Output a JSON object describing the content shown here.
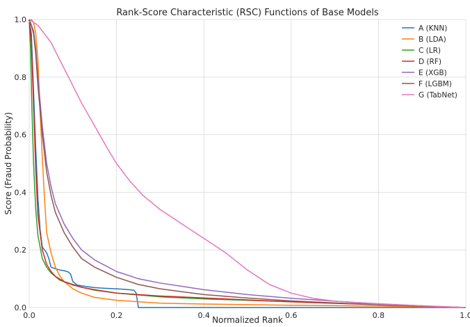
{
  "chart_data": {
    "type": "line",
    "title": "Rank-Score Characteristic (RSC) Functions of Base Models",
    "xlabel": "Normalized Rank",
    "ylabel": "Score (Fraud Probability)",
    "xlim": [
      0.0,
      1.0
    ],
    "ylim": [
      0.0,
      1.0
    ],
    "grid": true,
    "legend_position": "top-right",
    "x_ticks": [
      "0.0",
      "0.2",
      "0.4",
      "0.6",
      "0.8",
      "1.0"
    ],
    "y_ticks": [
      "0.0",
      "0.2",
      "0.4",
      "0.6",
      "0.8",
      "1.0"
    ],
    "series": [
      {
        "name": "A (KNN)",
        "color": "#1f77b4",
        "points": [
          [
            0,
            1.0
          ],
          [
            0.005,
            0.95
          ],
          [
            0.01,
            0.75
          ],
          [
            0.015,
            0.55
          ],
          [
            0.02,
            0.38
          ],
          [
            0.025,
            0.27
          ],
          [
            0.03,
            0.21
          ],
          [
            0.04,
            0.19
          ],
          [
            0.045,
            0.17
          ],
          [
            0.05,
            0.14
          ],
          [
            0.06,
            0.135
          ],
          [
            0.07,
            0.13
          ],
          [
            0.08,
            0.128
          ],
          [
            0.09,
            0.123
          ],
          [
            0.095,
            0.115
          ],
          [
            0.1,
            0.09
          ],
          [
            0.11,
            0.078
          ],
          [
            0.13,
            0.073
          ],
          [
            0.15,
            0.069
          ],
          [
            0.17,
            0.067
          ],
          [
            0.2,
            0.065
          ],
          [
            0.22,
            0.063
          ],
          [
            0.24,
            0.06
          ],
          [
            0.245,
            0.05
          ],
          [
            0.248,
            0.02
          ],
          [
            0.25,
            0.0
          ],
          [
            1.0,
            0.0
          ]
        ]
      },
      {
        "name": "B (LDA)",
        "color": "#ff7f0e",
        "points": [
          [
            0,
            1.0
          ],
          [
            0.01,
            0.99
          ],
          [
            0.015,
            0.95
          ],
          [
            0.02,
            0.86
          ],
          [
            0.025,
            0.68
          ],
          [
            0.03,
            0.52
          ],
          [
            0.035,
            0.38
          ],
          [
            0.04,
            0.26
          ],
          [
            0.05,
            0.19
          ],
          [
            0.06,
            0.14
          ],
          [
            0.07,
            0.11
          ],
          [
            0.08,
            0.09
          ],
          [
            0.1,
            0.065
          ],
          [
            0.12,
            0.05
          ],
          [
            0.15,
            0.035
          ],
          [
            0.2,
            0.025
          ],
          [
            0.3,
            0.015
          ],
          [
            0.4,
            0.012
          ],
          [
            0.5,
            0.01
          ],
          [
            0.6,
            0.008
          ],
          [
            0.8,
            0.005
          ],
          [
            1.0,
            0.0
          ]
        ]
      },
      {
        "name": "C (LR)",
        "color": "#2ca02c",
        "points": [
          [
            0,
            1.0
          ],
          [
            0.003,
            0.9
          ],
          [
            0.006,
            0.7
          ],
          [
            0.01,
            0.5
          ],
          [
            0.015,
            0.34
          ],
          [
            0.02,
            0.25
          ],
          [
            0.03,
            0.17
          ],
          [
            0.04,
            0.14
          ],
          [
            0.05,
            0.12
          ],
          [
            0.07,
            0.095
          ],
          [
            0.1,
            0.078
          ],
          [
            0.15,
            0.06
          ],
          [
            0.2,
            0.05
          ],
          [
            0.3,
            0.037
          ],
          [
            0.4,
            0.03
          ],
          [
            0.5,
            0.025
          ],
          [
            0.6,
            0.02
          ],
          [
            0.7,
            0.015
          ],
          [
            0.8,
            0.01
          ],
          [
            0.9,
            0.005
          ],
          [
            1.0,
            0.0
          ]
        ]
      },
      {
        "name": "D (RF)",
        "color": "#d62728",
        "points": [
          [
            0,
            1.0
          ],
          [
            0.005,
            0.92
          ],
          [
            0.01,
            0.7
          ],
          [
            0.015,
            0.48
          ],
          [
            0.02,
            0.32
          ],
          [
            0.03,
            0.2
          ],
          [
            0.04,
            0.15
          ],
          [
            0.05,
            0.125
          ],
          [
            0.06,
            0.108
          ],
          [
            0.08,
            0.09
          ],
          [
            0.1,
            0.08
          ],
          [
            0.12,
            0.07
          ],
          [
            0.15,
            0.062
          ],
          [
            0.2,
            0.05
          ],
          [
            0.3,
            0.04
          ],
          [
            0.45,
            0.03
          ],
          [
            0.55,
            0.023
          ],
          [
            0.65,
            0.017
          ],
          [
            0.75,
            0.012
          ],
          [
            0.85,
            0.007
          ],
          [
            1.0,
            0.0
          ]
        ]
      },
      {
        "name": "E (XGB)",
        "color": "#9467bd",
        "points": [
          [
            0,
            1.0
          ],
          [
            0.005,
            0.98
          ],
          [
            0.01,
            0.96
          ],
          [
            0.015,
            0.9
          ],
          [
            0.02,
            0.8
          ],
          [
            0.03,
            0.63
          ],
          [
            0.04,
            0.5
          ],
          [
            0.05,
            0.42
          ],
          [
            0.06,
            0.36
          ],
          [
            0.08,
            0.29
          ],
          [
            0.1,
            0.24
          ],
          [
            0.12,
            0.2
          ],
          [
            0.15,
            0.165
          ],
          [
            0.2,
            0.125
          ],
          [
            0.25,
            0.1
          ],
          [
            0.3,
            0.085
          ],
          [
            0.4,
            0.062
          ],
          [
            0.5,
            0.045
          ],
          [
            0.6,
            0.032
          ],
          [
            0.7,
            0.022
          ],
          [
            0.8,
            0.013
          ],
          [
            0.9,
            0.006
          ],
          [
            1.0,
            0.0
          ]
        ]
      },
      {
        "name": "F (LGBM)",
        "color": "#8c564b",
        "points": [
          [
            0,
            1.0
          ],
          [
            0.005,
            0.98
          ],
          [
            0.01,
            0.95
          ],
          [
            0.015,
            0.88
          ],
          [
            0.02,
            0.77
          ],
          [
            0.03,
            0.6
          ],
          [
            0.04,
            0.47
          ],
          [
            0.05,
            0.39
          ],
          [
            0.06,
            0.33
          ],
          [
            0.08,
            0.26
          ],
          [
            0.1,
            0.21
          ],
          [
            0.12,
            0.17
          ],
          [
            0.15,
            0.14
          ],
          [
            0.2,
            0.105
          ],
          [
            0.25,
            0.08
          ],
          [
            0.3,
            0.065
          ],
          [
            0.4,
            0.045
          ],
          [
            0.5,
            0.033
          ],
          [
            0.6,
            0.023
          ],
          [
            0.7,
            0.016
          ],
          [
            0.8,
            0.01
          ],
          [
            0.9,
            0.005
          ],
          [
            1.0,
            0.0
          ]
        ]
      },
      {
        "name": "G (TabNet)",
        "color": "#e377c2",
        "points": [
          [
            0,
            0.99
          ],
          [
            0.005,
            1.0
          ],
          [
            0.01,
            0.99
          ],
          [
            0.02,
            0.98
          ],
          [
            0.03,
            0.96
          ],
          [
            0.04,
            0.94
          ],
          [
            0.05,
            0.92
          ],
          [
            0.06,
            0.89
          ],
          [
            0.08,
            0.83
          ],
          [
            0.1,
            0.77
          ],
          [
            0.12,
            0.71
          ],
          [
            0.15,
            0.63
          ],
          [
            0.18,
            0.55
          ],
          [
            0.2,
            0.5
          ],
          [
            0.23,
            0.44
          ],
          [
            0.26,
            0.39
          ],
          [
            0.3,
            0.34
          ],
          [
            0.35,
            0.29
          ],
          [
            0.4,
            0.24
          ],
          [
            0.45,
            0.19
          ],
          [
            0.5,
            0.13
          ],
          [
            0.55,
            0.08
          ],
          [
            0.6,
            0.05
          ],
          [
            0.65,
            0.032
          ],
          [
            0.7,
            0.022
          ],
          [
            0.8,
            0.012
          ],
          [
            0.9,
            0.006
          ],
          [
            1.0,
            0.0
          ]
        ]
      }
    ]
  }
}
